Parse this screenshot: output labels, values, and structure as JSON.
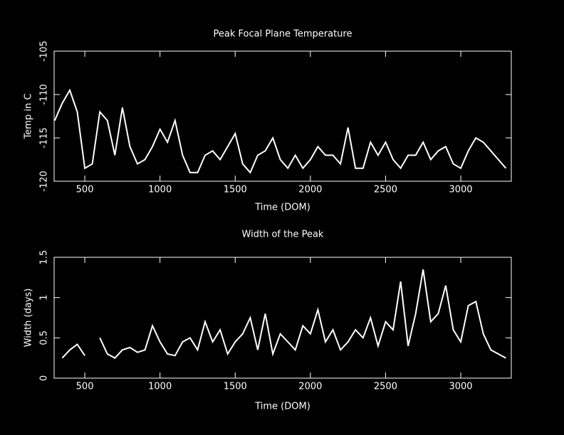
{
  "chart_data": [
    {
      "type": "line",
      "title": "Peak Focal Plane Temperature",
      "xlabel": "Time (DOM)",
      "ylabel": "Temp in C",
      "x": [
        300,
        350,
        400,
        450,
        500,
        550,
        600,
        650,
        700,
        750,
        800,
        850,
        900,
        950,
        1000,
        1050,
        1100,
        1150,
        1200,
        1250,
        1300,
        1350,
        1400,
        1450,
        1500,
        1550,
        1600,
        1650,
        1700,
        1750,
        1800,
        1850,
        1900,
        1950,
        2000,
        2050,
        2100,
        2150,
        2200,
        2250,
        2300,
        2350,
        2400,
        2450,
        2500,
        2550,
        2600,
        2650,
        2700,
        2750,
        2800,
        2850,
        2900,
        2950,
        3000,
        3050,
        3100,
        3150,
        3200,
        3250,
        3300
      ],
      "series": [
        {
          "name": "Temperature",
          "color": "#ffffff",
          "values": [
            -113,
            -111,
            -109.5,
            -112,
            -118.5,
            -118,
            -112,
            -113,
            -117,
            -111.5,
            -116,
            -118,
            -117.5,
            -116,
            -114,
            -115.5,
            -113,
            -117,
            -119,
            -119,
            -117,
            -116.5,
            -117.5,
            -116,
            -114.5,
            -118,
            -119,
            -117,
            -116.5,
            -115,
            -117.5,
            -118.5,
            -117,
            -118.5,
            -117.5,
            -116,
            -117,
            -117,
            -118,
            -113.8,
            -118.5,
            -118.5,
            -115.5,
            -117,
            -115.5,
            -117.5,
            -118.5,
            -117,
            -117,
            -115.5,
            -117.5,
            -116.5,
            -116,
            -118,
            -118.5,
            -116.5,
            -115,
            -115.5,
            -116.5,
            -117.5,
            -118.5
          ]
        }
      ],
      "xlim": [
        296,
        3336
      ],
      "xticks": [
        500,
        1000,
        1500,
        2000,
        2500,
        3000
      ],
      "ylim": [
        -120,
        -105
      ],
      "yticks": [
        -105,
        -110,
        -115,
        -120
      ]
    },
    {
      "type": "line",
      "title": "Width of the Peak",
      "xlabel": "Time (DOM)",
      "ylabel": "Width (days)",
      "x": [
        300,
        350,
        400,
        450,
        500,
        550,
        600,
        650,
        700,
        750,
        800,
        850,
        900,
        950,
        1000,
        1050,
        1100,
        1150,
        1200,
        1250,
        1300,
        1350,
        1400,
        1450,
        1500,
        1550,
        1600,
        1650,
        1700,
        1750,
        1800,
        1850,
        1900,
        1950,
        2000,
        2050,
        2100,
        2150,
        2200,
        2250,
        2300,
        2350,
        2400,
        2450,
        2500,
        2550,
        2600,
        2650,
        2700,
        2750,
        2800,
        2850,
        2900,
        2950,
        3000,
        3050,
        3100,
        3150,
        3200,
        3250,
        3300
      ],
      "series": [
        {
          "name": "Width",
          "color": "#ffffff",
          "values": [
            null,
            0.25,
            0.35,
            0.42,
            0.28,
            null,
            0.5,
            0.3,
            0.25,
            0.35,
            0.38,
            0.32,
            0.35,
            0.65,
            0.45,
            0.3,
            0.28,
            0.45,
            0.5,
            0.35,
            0.7,
            0.45,
            0.6,
            0.3,
            0.45,
            0.55,
            0.75,
            0.35,
            0.8,
            0.3,
            0.55,
            0.45,
            0.35,
            0.65,
            0.55,
            0.85,
            0.45,
            0.6,
            0.35,
            0.45,
            0.6,
            0.5,
            0.75,
            0.4,
            0.7,
            0.6,
            1.2,
            0.4,
            0.8,
            1.35,
            0.7,
            0.8,
            1.15,
            0.6,
            0.45,
            0.9,
            0.95,
            0.55,
            0.35,
            0.3,
            0.25
          ]
        }
      ],
      "xlim": [
        296,
        3336
      ],
      "xticks": [
        500,
        1000,
        1500,
        2000,
        2500,
        3000
      ],
      "ylim": [
        0,
        1.5
      ],
      "yticks": [
        0,
        0.5,
        1,
        1.5
      ]
    }
  ]
}
